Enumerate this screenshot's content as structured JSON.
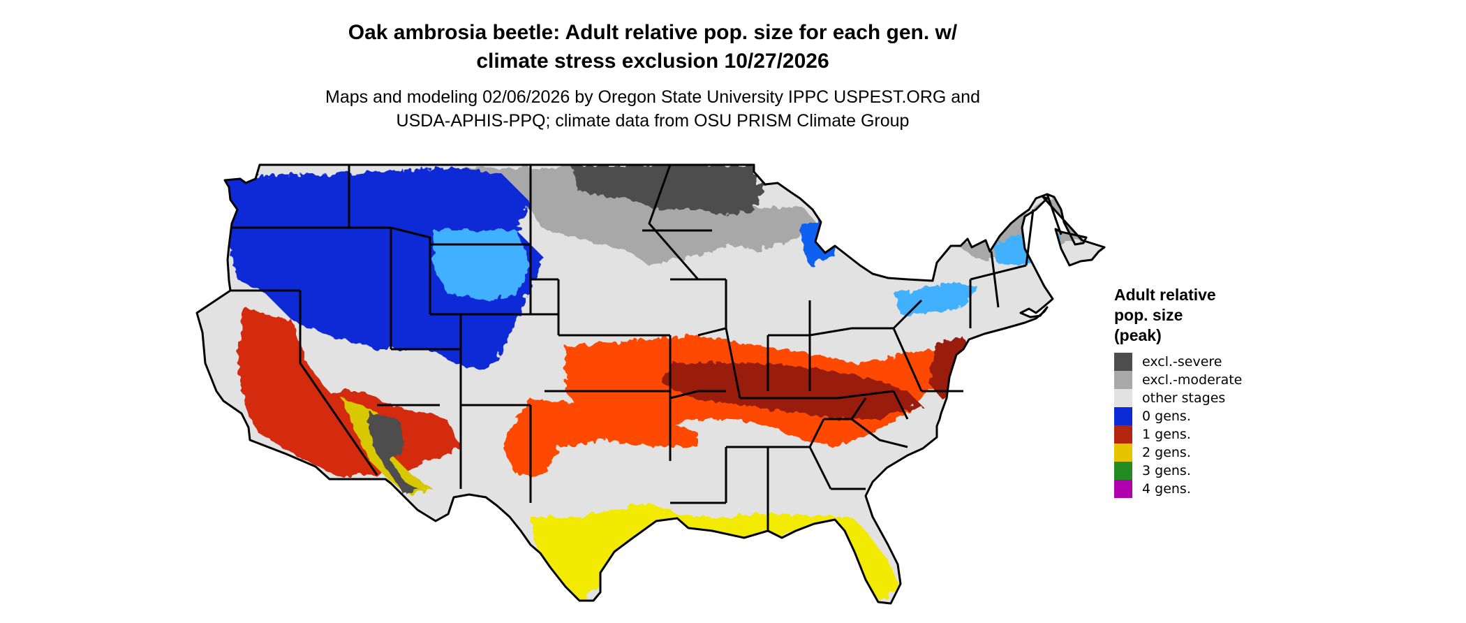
{
  "title": "Oak ambrosia beetle: Adult relative pop. size for each gen. w/\nclimate stress exclusion 10/27/2026",
  "subtitle": "Maps and modeling 02/06/2026 by Oregon State University IPPC USPEST.ORG and\nUSDA-APHIS-PPQ; climate data from OSU PRISM Climate Group",
  "legend": {
    "title": "Adult relative\npop. size\n(peak)",
    "items": [
      {
        "label": "excl.-severe",
        "color": "#4d4d4d"
      },
      {
        "label": "excl.-moderate",
        "color": "#a8a8a8"
      },
      {
        "label": "other stages",
        "color": "#e2e2e2"
      },
      {
        "label": "0 gens.",
        "color": "#0b2bd6"
      },
      {
        "label": "1 gens.",
        "color": "#b3250e"
      },
      {
        "label": "2 gens.",
        "color": "#e6c400"
      },
      {
        "label": "3 gens.",
        "color": "#228b22"
      },
      {
        "label": "4 gens.",
        "color": "#b000b0"
      }
    ]
  },
  "map_colors": {
    "base": "#e2e2e2",
    "gray_dark": "#4d4d4d",
    "gray_mid": "#a8a8a8",
    "blue_dark": "#0b2bd6",
    "blue_mid": "#1060f0",
    "blue_light": "#3fb0ff",
    "red_dark": "#9a1e0e",
    "red_mid": "#d42a0c",
    "orange": "#ff4a00",
    "yellow": "#f2ea00",
    "yellow_dim": "#d8c800",
    "border": "#000000"
  }
}
